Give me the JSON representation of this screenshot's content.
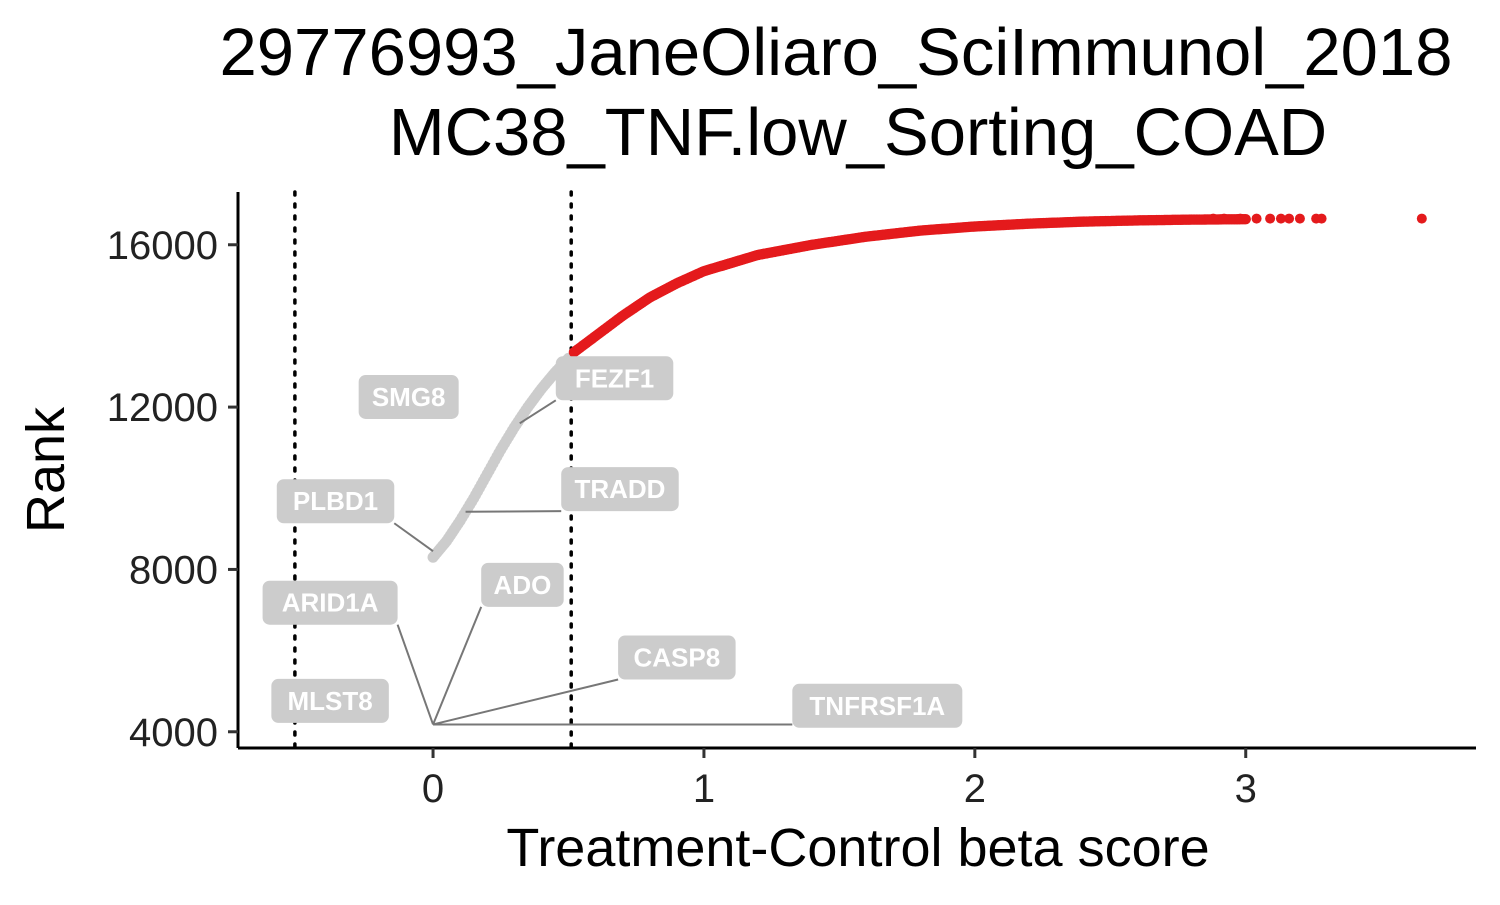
{
  "chart_data": {
    "type": "scatter",
    "title_lines": [
      "29776993_JaneOliaro_SciImmunol_2018",
      "MC38_TNF.low_Sorting_COAD"
    ],
    "xlabel": "Treatment-Control beta score",
    "ylabel": "Rank",
    "xlim": [
      -0.72,
      3.85
    ],
    "ylim": [
      3600,
      17300
    ],
    "x_ticks": [
      0,
      1,
      2,
      3
    ],
    "y_ticks": [
      4000,
      8000,
      12000,
      16000
    ],
    "cutoff_lines_x": [
      -0.51,
      0.51
    ],
    "grid": false,
    "legend": "none",
    "colors": {
      "highlighted": "#e41a1c",
      "background": "#cccccc",
      "label_box": "#cccccc",
      "label_text": "#ffffff",
      "connector": "#777777",
      "axis": "#000000"
    },
    "series": [
      {
        "points": [
          {
            "x": 0.0,
            "rank": 8300
          },
          {
            "x": 0.05,
            "rank": 8700
          },
          {
            "x": 0.1,
            "rank": 9200
          },
          {
            "x": 0.15,
            "rank": 9750
          },
          {
            "x": 0.2,
            "rank": 10350
          },
          {
            "x": 0.25,
            "rank": 10950
          },
          {
            "x": 0.3,
            "rank": 11500
          },
          {
            "x": 0.35,
            "rank": 12000
          },
          {
            "x": 0.4,
            "rank": 12450
          },
          {
            "x": 0.45,
            "rank": 12850
          },
          {
            "x": 0.5,
            "rank": 13200
          }
        ]
      },
      {
        "points": [
          {
            "x": 0.52,
            "rank": 13350
          },
          {
            "x": 0.6,
            "rank": 13750
          },
          {
            "x": 0.7,
            "rank": 14250
          },
          {
            "x": 0.8,
            "rank": 14700
          },
          {
            "x": 0.9,
            "rank": 15050
          },
          {
            "x": 1.0,
            "rank": 15350
          },
          {
            "x": 1.2,
            "rank": 15750
          },
          {
            "x": 1.4,
            "rank": 16000
          },
          {
            "x": 1.6,
            "rank": 16200
          },
          {
            "x": 1.8,
            "rank": 16350
          },
          {
            "x": 2.0,
            "rank": 16450
          },
          {
            "x": 2.2,
            "rank": 16520
          },
          {
            "x": 2.4,
            "rank": 16570
          },
          {
            "x": 2.6,
            "rank": 16600
          },
          {
            "x": 2.8,
            "rank": 16620
          },
          {
            "x": 3.0,
            "rank": 16630
          },
          {
            "x": 3.1,
            "rank": 16635
          },
          {
            "x": 3.2,
            "rank": 16640
          },
          {
            "x": 3.27,
            "rank": 16645
          },
          {
            "x": 3.65,
            "rank": 16650
          }
        ]
      }
    ],
    "labeled_genes": [
      {
        "name": "SMG8",
        "x": 0.3,
        "rank": 11500,
        "label_x": -0.09,
        "label_rank": 12250,
        "connector": false
      },
      {
        "name": "FEZF1",
        "x": 0.32,
        "rank": 11600,
        "label_x": 0.67,
        "label_rank": 12710,
        "connector": true
      },
      {
        "name": "TRADD",
        "x": 0.12,
        "rank": 9420,
        "label_x": 0.69,
        "label_rank": 9980,
        "connector": true
      },
      {
        "name": "PLBD1",
        "x": 0.0,
        "rank": 8450,
        "label_x": -0.36,
        "label_rank": 9680,
        "connector": true
      },
      {
        "name": "ADO",
        "x": 0.0,
        "rank": 4180,
        "label_x": 0.33,
        "label_rank": 7620,
        "connector": true
      },
      {
        "name": "ARID1A",
        "x": 0.0,
        "rank": 4180,
        "label_x": -0.38,
        "label_rank": 7180,
        "connector": true
      },
      {
        "name": "CASP8",
        "x": 0.0,
        "rank": 4180,
        "label_x": 0.9,
        "label_rank": 5830,
        "connector": true
      },
      {
        "name": "MLST8",
        "x": 0.0,
        "rank": 4180,
        "label_x": -0.38,
        "label_rank": 4760,
        "connector": false
      },
      {
        "name": "TNFRSF1A",
        "x": 0.0,
        "rank": 4180,
        "label_x": 1.64,
        "label_rank": 4640,
        "connector": true
      }
    ]
  }
}
